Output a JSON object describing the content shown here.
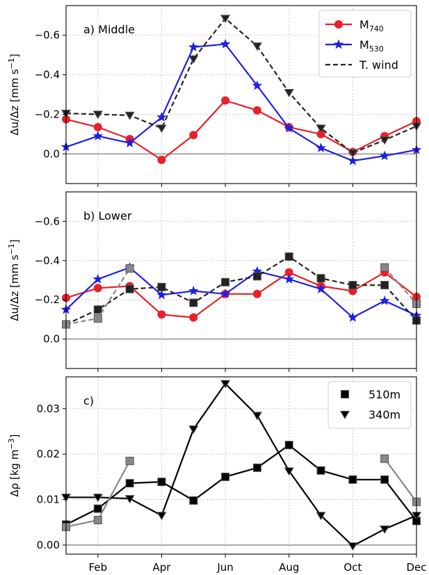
{
  "chart_data": [
    {
      "type": "line",
      "title": "a) Middle",
      "ylabel": "Δu/Δz [mm s⁻¹]",
      "ylabel_parts": {
        "main": "Δu/Δz [mm s",
        "exp": "−1",
        "close": "]"
      },
      "ylim": [
        0.15,
        -0.75
      ],
      "yticks": [
        -0.6,
        -0.4,
        -0.2,
        0.0
      ],
      "ytick_labels": [
        "−0.6",
        "−0.4",
        "−0.2",
        "0.0"
      ],
      "zero_line": 0.0,
      "x": [
        0.5,
        1.5,
        2.5,
        3.5,
        4.5,
        5.5,
        6.5,
        7.5,
        8.5,
        9.5,
        10.5,
        11.5
      ],
      "xlim": [
        0.5,
        11.5
      ],
      "legend": {
        "placement": "top-right"
      },
      "series": [
        {
          "name": "M740",
          "name_main": "M",
          "name_sub": "740",
          "color": "#e8202a",
          "marker": "circle",
          "linestyle": "solid",
          "values": [
            -0.175,
            -0.135,
            -0.075,
            0.03,
            -0.095,
            -0.27,
            -0.22,
            -0.135,
            -0.1,
            -0.01,
            -0.09,
            -0.165
          ]
        },
        {
          "name": "M530",
          "name_main": "M",
          "name_sub": "530",
          "color": "#2020e0",
          "marker": "star",
          "linestyle": "solid",
          "values": [
            -0.035,
            -0.09,
            -0.055,
            -0.185,
            -0.54,
            -0.555,
            -0.345,
            -0.13,
            -0.03,
            0.035,
            0.01,
            -0.02
          ]
        },
        {
          "name": "T. wind",
          "color": "#222222",
          "marker": "triangle-down",
          "linestyle": "dashed",
          "values": [
            -0.205,
            -0.2,
            -0.195,
            -0.13,
            -0.48,
            -0.685,
            -0.545,
            -0.31,
            -0.13,
            -0.005,
            -0.07,
            -0.14
          ]
        }
      ]
    },
    {
      "type": "line",
      "title": "b) Lower",
      "ylabel": "Δu/Δz [mm s⁻¹]",
      "ylabel_parts": {
        "main": "Δu/Δz [mm s",
        "exp": "−1",
        "close": "]"
      },
      "ylim": [
        0.15,
        -0.75
      ],
      "yticks": [
        -0.6,
        -0.4,
        -0.2,
        0.0
      ],
      "ytick_labels": [
        "−0.6",
        "−0.4",
        "−0.2",
        "0.0"
      ],
      "zero_line": 0.0,
      "x": [
        0.5,
        1.5,
        2.5,
        3.5,
        4.5,
        5.5,
        6.5,
        7.5,
        8.5,
        9.5,
        10.5,
        11.5
      ],
      "xlim": [
        0.5,
        11.5
      ],
      "series": [
        {
          "name": "M740",
          "color": "#e8202a",
          "marker": "circle",
          "linestyle": "solid",
          "values": [
            -0.21,
            -0.26,
            -0.27,
            -0.125,
            -0.11,
            -0.23,
            -0.23,
            -0.34,
            -0.27,
            -0.245,
            -0.34,
            -0.215
          ]
        },
        {
          "name": "M530",
          "color": "#2020e0",
          "marker": "star",
          "linestyle": "solid",
          "values": [
            -0.15,
            -0.305,
            -0.365,
            -0.225,
            -0.245,
            -0.23,
            -0.345,
            -0.305,
            -0.255,
            -0.11,
            -0.195,
            -0.12
          ]
        },
        {
          "name": "T. wind",
          "color": "#222222",
          "marker": "square",
          "linestyle": "dashed",
          "values": [
            -0.075,
            -0.15,
            -0.255,
            -0.265,
            -0.185,
            -0.29,
            -0.32,
            -0.42,
            -0.31,
            -0.275,
            -0.275,
            -0.095
          ]
        },
        {
          "name": "T. wind (gray)",
          "color": "#888888",
          "marker": "square",
          "linestyle": "dashed",
          "show_in_legend": false,
          "segments": [
            {
              "x": [
                0.5,
                1.5,
                2.5
              ],
              "values": [
                -0.075,
                -0.105,
                -0.36
              ]
            },
            {
              "x": [
                10.5,
                11.5
              ],
              "values": [
                -0.365,
                -0.18
              ]
            }
          ]
        }
      ]
    },
    {
      "type": "line",
      "title": "c)",
      "ylabel": "Δρ [kg m⁻³]",
      "ylabel_parts": {
        "main": "Δρ [kg m",
        "exp": "−3",
        "close": "]"
      },
      "ylim": [
        -0.002,
        0.037
      ],
      "yticks": [
        0.0,
        0.01,
        0.02,
        0.03
      ],
      "ytick_labels": [
        "0.00",
        "0.01",
        "0.02",
        "0.03"
      ],
      "zero_line": 0.0,
      "x": [
        0.5,
        1.5,
        2.5,
        3.5,
        4.5,
        5.5,
        6.5,
        7.5,
        8.5,
        9.5,
        10.5,
        11.5
      ],
      "xlim": [
        0.5,
        11.5
      ],
      "xtick_labels": [
        "Feb",
        "Apr",
        "Jun",
        "Aug",
        "Oct",
        "Dec"
      ],
      "xtick_positions": [
        1.5,
        3.5,
        5.5,
        7.5,
        9.5,
        11.5
      ],
      "legend": {
        "placement": "top-right"
      },
      "series": [
        {
          "name": "510m",
          "color": "#000000",
          "marker": "square",
          "linestyle": "solid",
          "values": [
            0.0045,
            0.008,
            0.0136,
            0.0139,
            0.0098,
            0.015,
            0.017,
            0.022,
            0.0164,
            0.0144,
            0.0144,
            0.0053
          ]
        },
        {
          "name": "340m",
          "color": "#000000",
          "marker": "triangle-down",
          "linestyle": "solid",
          "values": [
            0.0105,
            0.0105,
            0.0102,
            0.0065,
            0.0255,
            0.0355,
            0.0285,
            0.0163,
            0.0065,
            -0.0002,
            0.0035,
            0.0065
          ]
        },
        {
          "name": "510m (gray)",
          "color": "#888888",
          "marker": "square",
          "linestyle": "solid",
          "show_in_legend": false,
          "segments": [
            {
              "x": [
                0.5,
                1.5,
                2.5
              ],
              "values": [
                0.004,
                0.0055,
                0.0185
              ]
            },
            {
              "x": [
                10.5,
                11.5
              ],
              "values": [
                0.019,
                0.0095
              ]
            }
          ]
        }
      ]
    }
  ]
}
